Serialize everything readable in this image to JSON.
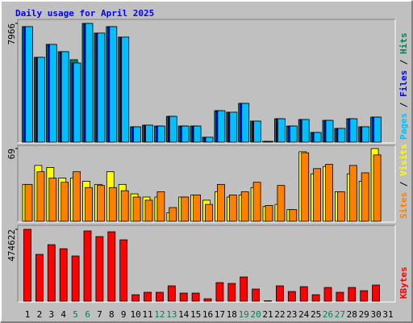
{
  "chart_data": [
    {
      "type": "bar",
      "title": "Daily usage for April 2025",
      "legend_separator": " / ",
      "ylim": [
        0,
        7966
      ],
      "yticks": [
        7966
      ],
      "series": [
        {
          "name": "Hits",
          "color": "#00805c",
          "values": [
            7750,
            5690,
            6560,
            6070,
            5530,
            7966,
            7320,
            7750,
            7050,
            1030,
            1140,
            1080,
            1730,
            1080,
            1080,
            330,
            2110,
            2010,
            2600,
            1410,
            50,
            1570,
            1080,
            1520,
            650,
            1460,
            920,
            1570,
            1030,
            1680,
            0
          ]
        },
        {
          "name": "Files",
          "color": "#0000ff",
          "values": [
            7750,
            5690,
            6560,
            6070,
            5310,
            7966,
            7320,
            7750,
            7050,
            1030,
            1140,
            1080,
            1730,
            1080,
            1080,
            330,
            2110,
            2010,
            2600,
            1410,
            50,
            1570,
            1080,
            1520,
            650,
            1460,
            920,
            1570,
            1030,
            1680,
            0
          ]
        },
        {
          "name": "Pages",
          "color": "#00c0ff",
          "values": [
            7750,
            5690,
            6560,
            6070,
            5310,
            7966,
            7320,
            7750,
            7050,
            1030,
            1140,
            1080,
            1730,
            1080,
            1080,
            330,
            2110,
            2010,
            2600,
            1410,
            50,
            1570,
            1080,
            1520,
            650,
            1460,
            920,
            1570,
            1030,
            1680,
            0
          ]
        }
      ]
    },
    {
      "type": "bar",
      "legend_separator": " / ",
      "ylim": [
        0,
        69
      ],
      "yticks": [
        69
      ],
      "series": [
        {
          "name": "Visits",
          "color": "#ffff00",
          "values": [
            35,
            53,
            51,
            41,
            41,
            38,
            35,
            47,
            35,
            26,
            23,
            23,
            8,
            23,
            25,
            20,
            28,
            23,
            25,
            32,
            14,
            16,
            11,
            66,
            45,
            52,
            28,
            45,
            38,
            69,
            0
          ]
        },
        {
          "name": "Sites",
          "color": "#ff8000",
          "values": [
            35,
            47,
            41,
            37,
            47,
            32,
            34,
            32,
            29,
            23,
            20,
            28,
            13,
            23,
            25,
            16,
            35,
            25,
            28,
            37,
            15,
            34,
            11,
            65,
            50,
            54,
            28,
            53,
            46,
            63,
            0
          ]
        }
      ]
    },
    {
      "type": "bar",
      "ylim": [
        0,
        474622
      ],
      "yticks": [
        474622
      ],
      "series": [
        {
          "name": "KBytes",
          "color": "#ff0000",
          "values": [
            474622,
            309300,
            373300,
            346600,
            298600,
            464000,
            426600,
            458600,
            405300,
            42700,
            58700,
            58700,
            101300,
            53300,
            53300,
            16000,
            122700,
            117300,
            160000,
            80000,
            3000,
            101300,
            64000,
            96000,
            42700,
            90700,
            58700,
            90700,
            69300,
            106700,
            0
          ]
        }
      ],
      "categories": [
        "1",
        "2",
        "3",
        "4",
        "5",
        "6",
        "7",
        "8",
        "9",
        "10",
        "11",
        "12",
        "13",
        "14",
        "15",
        "16",
        "17",
        "18",
        "19",
        "20",
        "21",
        "22",
        "23",
        "24",
        "25",
        "26",
        "27",
        "28",
        "29",
        "30",
        "31"
      ],
      "label_colors": [
        "#000000",
        "#000000",
        "#000000",
        "#000000",
        "#00805c",
        "#00805c",
        "#000000",
        "#000000",
        "#000000",
        "#000000",
        "#000000",
        "#00805c",
        "#00805c",
        "#000000",
        "#000000",
        "#000000",
        "#000000",
        "#000000",
        "#00805c",
        "#00805c",
        "#000000",
        "#000000",
        "#000000",
        "#000000",
        "#000000",
        "#00805c",
        "#00805c",
        "#000000",
        "#000000",
        "#000000",
        "#000000"
      ]
    }
  ]
}
